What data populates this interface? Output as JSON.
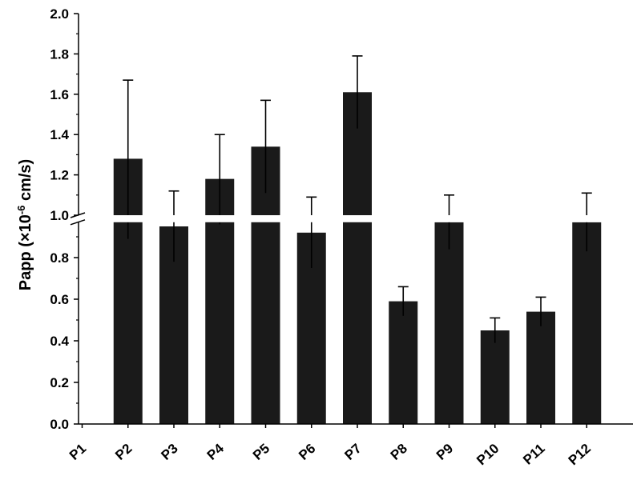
{
  "chart_data": {
    "type": "bar",
    "categories": [
      "P1",
      "P2",
      "P3",
      "P4",
      "P5",
      "P6",
      "P7",
      "P8",
      "P9",
      "P10",
      "P11",
      "P12"
    ],
    "values": [
      null,
      1.28,
      0.95,
      1.18,
      1.34,
      0.92,
      1.61,
      0.59,
      0.97,
      0.45,
      0.54,
      0.97
    ],
    "errors": [
      null,
      0.39,
      0.17,
      0.22,
      0.23,
      0.17,
      0.18,
      0.07,
      0.13,
      0.06,
      0.07,
      0.14
    ],
    "ylabel_prefix": "Papp (×10",
    "ylabel_exponent": "-6",
    "ylabel_suffix": " cm/s)",
    "xlabel": "",
    "y_axis_break": [
      0.97,
      1.0
    ],
    "ylim_lower": [
      0,
      0.97
    ],
    "ylim_upper": [
      1.0,
      2.0
    ],
    "yticks_lower": [
      "0.0",
      "0.2",
      "0.4",
      "0.6",
      "0.8"
    ],
    "yticks_upper": [
      "1.0",
      "1.2",
      "1.4",
      "1.6",
      "1.8",
      "2.0"
    ],
    "bar_color": "#1a1a1a",
    "grid": false,
    "legend": "none"
  }
}
